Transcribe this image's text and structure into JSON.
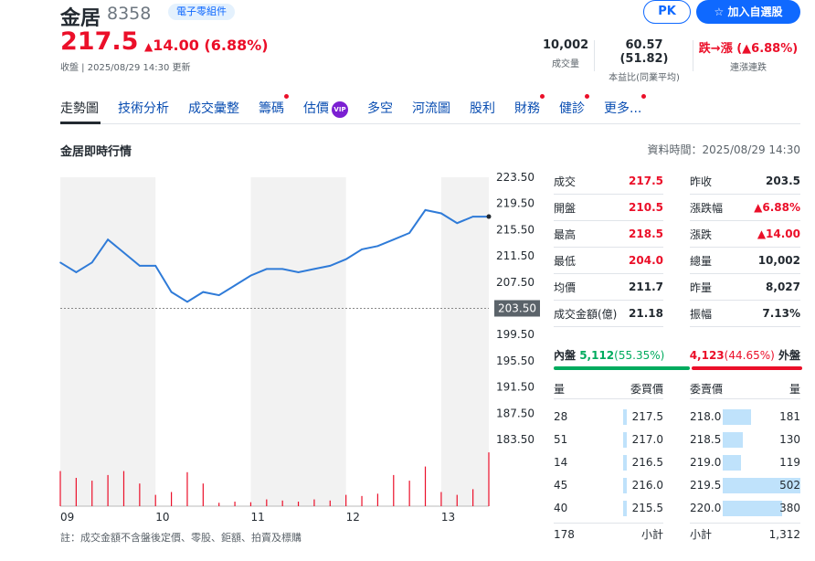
{
  "header": {
    "name": "金居",
    "code": "8358",
    "industry_tag": "電子零組件",
    "pk_label": "PK",
    "watch_label": "加入自選股",
    "price": "217.5",
    "change": "14.00 (6.88%)",
    "status": "收盤 | 2025/08/29 14:30 更新",
    "stats": [
      {
        "value": "10,002",
        "label": "成交量"
      },
      {
        "value": "60.57 (51.82)",
        "label": "本益比(同業平均)"
      },
      {
        "value": "跌→漲 (▲6.88%)",
        "label": "連漲連跌"
      }
    ]
  },
  "tabs": [
    {
      "label": "走勢圖",
      "dot": false
    },
    {
      "label": "技術分析",
      "dot": false
    },
    {
      "label": "成交彙整",
      "dot": false
    },
    {
      "label": "籌碼",
      "dot": true
    },
    {
      "label": "估價",
      "dot": false,
      "vip": "VIP"
    },
    {
      "label": "多空",
      "dot": false
    },
    {
      "label": "河流圖",
      "dot": false
    },
    {
      "label": "股利",
      "dot": false
    },
    {
      "label": "財務",
      "dot": true
    },
    {
      "label": "健診",
      "dot": true
    },
    {
      "label": "更多...",
      "dot": true
    }
  ],
  "section_title": "金居即時行情",
  "data_time": "資料時間：2025/08/29 14:30",
  "quote_left": [
    {
      "label": "成交",
      "value": "217.5",
      "color": "#eb0f29"
    },
    {
      "label": "開盤",
      "value": "210.5",
      "color": "#eb0f29"
    },
    {
      "label": "最高",
      "value": "218.5",
      "color": "#eb0f29"
    },
    {
      "label": "最低",
      "value": "204.0",
      "color": "#eb0f29"
    },
    {
      "label": "均價",
      "value": "211.7",
      "color": "#232a31"
    },
    {
      "label": "成交金額(億)",
      "value": "21.18",
      "color": "#232a31"
    }
  ],
  "quote_right": [
    {
      "label": "昨收",
      "value": "203.5",
      "color": "#232a31"
    },
    {
      "label": "漲跌幅",
      "value": "▲6.88%",
      "color": "#eb0f29"
    },
    {
      "label": "漲跌",
      "value": "▲14.00",
      "color": "#eb0f29"
    },
    {
      "label": "總量",
      "value": "10,002",
      "color": "#232a31"
    },
    {
      "label": "昨量",
      "value": "8,027",
      "color": "#232a31"
    },
    {
      "label": "振幅",
      "value": "7.13%",
      "color": "#232a31"
    }
  ],
  "pressure": {
    "inner_label": "內盤",
    "inner_value": "5,112",
    "inner_pct": "(55.35%)",
    "outer_value": "4,123",
    "outer_pct": "(44.65%)",
    "outer_label": "外盤",
    "inner_fraction": 0.5535
  },
  "orderbook": {
    "headers": [
      "量",
      "委買價",
      "委賣價",
      "量"
    ],
    "bids": [
      {
        "qty": "28",
        "price": "217.5",
        "share": 0.06
      },
      {
        "qty": "51",
        "price": "217.0",
        "share": 0.1
      },
      {
        "qty": "14",
        "price": "216.5",
        "share": 0.03
      },
      {
        "qty": "45",
        "price": "216.0",
        "share": 0.09
      },
      {
        "qty": "40",
        "price": "215.5",
        "share": 0.08
      }
    ],
    "asks": [
      {
        "price": "218.0",
        "qty": "181",
        "share": 0.36
      },
      {
        "price": "218.5",
        "qty": "130",
        "share": 0.26
      },
      {
        "price": "219.0",
        "qty": "119",
        "share": 0.24
      },
      {
        "price": "219.5",
        "qty": "502",
        "share": 1.0
      },
      {
        "price": "220.0",
        "qty": "380",
        "share": 0.76
      }
    ],
    "bid_total": "178",
    "subtotal_label": "小計",
    "ask_total": "1,312"
  },
  "footnote": "註：成交金額不含盤後定價、零股、鉅額、拍賣及標購",
  "chart_data": {
    "type": "line",
    "x": [
      "09:00",
      "09:10",
      "09:20",
      "09:30",
      "09:40",
      "09:50",
      "10:00",
      "10:10",
      "10:20",
      "10:30",
      "10:40",
      "10:50",
      "11:00",
      "11:10",
      "11:20",
      "11:30",
      "11:40",
      "11:50",
      "12:00",
      "12:10",
      "12:20",
      "12:30",
      "12:40",
      "12:50",
      "13:00",
      "13:10",
      "13:20",
      "13:30"
    ],
    "price": [
      210.5,
      209.0,
      210.5,
      214.0,
      212.0,
      210.0,
      210.0,
      206.0,
      204.5,
      206.0,
      205.5,
      207.0,
      208.5,
      209.5,
      209.5,
      209.0,
      209.5,
      210.0,
      211.0,
      212.5,
      213.0,
      214.0,
      215.0,
      218.5,
      218.0,
      216.5,
      217.5,
      217.5
    ],
    "volume_relative": [
      0.62,
      0.5,
      0.45,
      0.55,
      0.62,
      0.4,
      0.2,
      0.25,
      0.6,
      0.4,
      0.06,
      0.08,
      0.07,
      0.12,
      0.1,
      0.08,
      0.12,
      0.1,
      0.2,
      0.18,
      0.22,
      0.55,
      0.45,
      0.7,
      0.25,
      0.2,
      0.3,
      0.95
    ],
    "y_ticks": [
      "223.50",
      "219.50",
      "215.50",
      "211.50",
      "207.50",
      "203.50",
      "199.50",
      "195.50",
      "191.50",
      "187.50",
      "183.50"
    ],
    "ylim": [
      183.5,
      223.5
    ],
    "reference": 203.5,
    "reference_label": "203.50",
    "x_ticks": [
      "09",
      "10",
      "11",
      "12",
      "13"
    ],
    "shaded_hours": [
      "09",
      "11",
      "13"
    ],
    "line_color": "#2f7bd8",
    "volume_color": "#eb0f29"
  }
}
